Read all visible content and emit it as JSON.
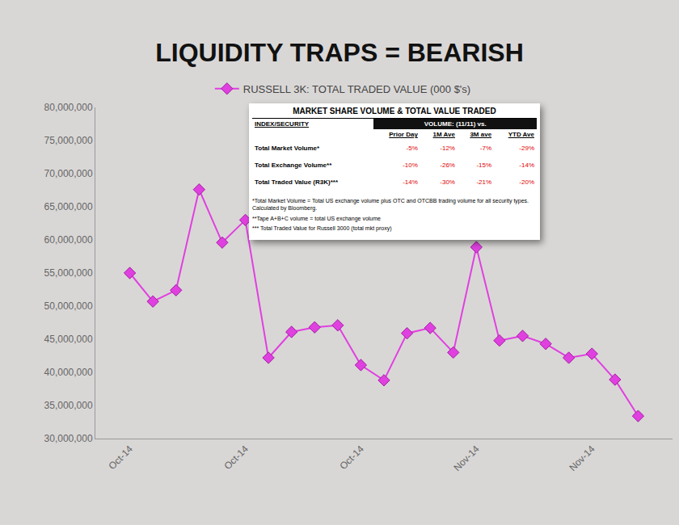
{
  "chart_data": {
    "type": "line",
    "title": "LIQUIDITY TRAPS = BEARISH",
    "categories": [
      "Oct-14",
      null,
      null,
      null,
      null,
      "Oct-14",
      null,
      null,
      null,
      null,
      "Oct-14",
      null,
      null,
      null,
      null,
      "Nov-14",
      null,
      null,
      null,
      null,
      "Nov-14",
      null,
      null
    ],
    "series": [
      {
        "name": "RUSSELL 3K: TOTAL TRADED VALUE (000 $'s)",
        "color": "#e040e0",
        "marker": "diamond",
        "values": [
          55000000,
          50700000,
          52400000,
          67600000,
          59600000,
          63000000,
          42200000,
          46100000,
          46800000,
          47100000,
          41100000,
          38800000,
          45900000,
          46700000,
          43000000,
          58900000,
          44800000,
          45500000,
          44300000,
          42200000,
          42800000,
          38900000,
          33400000
        ]
      }
    ],
    "ylim": [
      30000000,
      80000000
    ],
    "yticks": [
      {
        "value": 30000000,
        "label": "30,000,000"
      },
      {
        "value": 35000000,
        "label": "35,000,000"
      },
      {
        "value": 40000000,
        "label": "40,000,000"
      },
      {
        "value": 45000000,
        "label": "45,000,000"
      },
      {
        "value": 50000000,
        "label": "50,000,000"
      },
      {
        "value": 55000000,
        "label": "55,000,000"
      },
      {
        "value": 60000000,
        "label": "60,000,000"
      },
      {
        "value": 65000000,
        "label": "65,000,000"
      },
      {
        "value": 70000000,
        "label": "70,000,000"
      },
      {
        "value": 75000000,
        "label": "75,000,000"
      },
      {
        "value": 80000000,
        "label": "80,000,000"
      }
    ],
    "grid": false,
    "legend": "top"
  },
  "inset_table": {
    "title": "MARKET SHARE VOLUME & TOTAL VALUE TRADED",
    "header": [
      "INDEX/SECURITY",
      "VOLUME:  (11/11) vs."
    ],
    "columns": [
      "Prior Day",
      "1M Ave",
      "3M ave",
      "YTD Ave"
    ],
    "rows": [
      [
        "Total Market Volume*",
        "-5%",
        "-12%",
        "-7%",
        "-29%"
      ],
      [
        "Total Exchange Volume**",
        "-10%",
        "-26%",
        "-15%",
        "-14%"
      ],
      [
        "Total Traded Value (R3K)***",
        "-14%",
        "-30%",
        "-21%",
        "-20%"
      ]
    ],
    "notes": [
      "*Total Market Volume = Total US exchange volume plus OTC and OTCBB trading volume for all security types. Calculated by Bloomberg.",
      "**Tape A+B+C volume = total US exchange volume",
      "*** Total Traded Value for Russell 3000 (total mkt proxy)"
    ]
  }
}
